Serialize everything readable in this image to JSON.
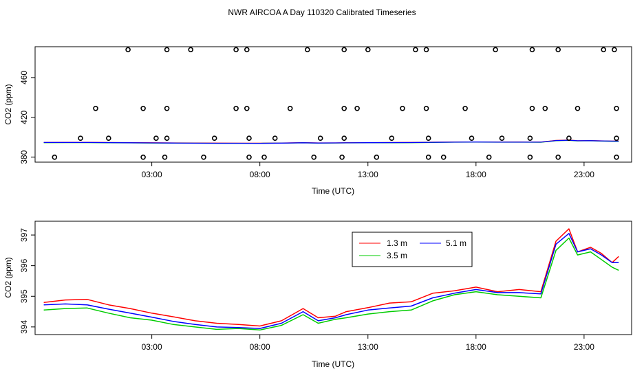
{
  "figure_title": "NWR AIRCOA A  Day 110320  Calibrated Timeseries",
  "chart_data": [
    {
      "type": "scatter",
      "title": "",
      "xlabel": "Time (UTC)",
      "ylabel": "CO2 (ppm)",
      "xlim": [
        -2.4,
        25.2
      ],
      "ylim": [
        375,
        491
      ],
      "x_ticks": [
        3,
        8,
        13,
        18,
        23
      ],
      "x_tick_labels": [
        "03:00",
        "08:00",
        "13:00",
        "18:00",
        "23:00"
      ],
      "y_ticks": [
        380,
        420,
        460
      ],
      "y_tick_labels": [
        "380",
        "420",
        "460"
      ],
      "points": {
        "x": [
          1.9,
          3.7,
          4.8,
          6.9,
          7.4,
          10.2,
          11.9,
          13.0,
          15.2,
          15.7,
          18.9,
          20.6,
          21.8,
          23.9,
          24.4,
          0.4,
          2.6,
          3.7,
          6.9,
          7.4,
          9.4,
          11.9,
          12.5,
          14.6,
          15.7,
          17.5,
          20.6,
          21.2,
          22.7,
          24.5,
          -0.3,
          1.0,
          3.2,
          3.7,
          5.9,
          7.5,
          8.7,
          10.8,
          11.9,
          14.1,
          15.8,
          17.8,
          19.2,
          20.5,
          22.3,
          24.5,
          -1.5,
          2.6,
          3.6,
          5.4,
          7.5,
          8.2,
          10.5,
          11.8,
          13.4,
          15.8,
          16.5,
          18.6,
          20.5,
          21.8,
          24.5
        ],
        "y": [
          488,
          488,
          488,
          488,
          488,
          488,
          488,
          488,
          488,
          488,
          488,
          488,
          488,
          488,
          488,
          429,
          429,
          429,
          429,
          429,
          429,
          429,
          429,
          429,
          429,
          429,
          429,
          429,
          429,
          429,
          399,
          399,
          399,
          399,
          399,
          399,
          399,
          399,
          399,
          399,
          399,
          399,
          399,
          399,
          399,
          399,
          380,
          380,
          380,
          380,
          380,
          380,
          380,
          380,
          380,
          380,
          380,
          380,
          380,
          380,
          380
        ]
      },
      "line_series": [
        {
          "name": "1.3 m",
          "color": "#ff0000"
        },
        {
          "name": "3.5 m",
          "color": "#00cc00"
        },
        {
          "name": "5.1 m",
          "color": "#0000ff"
        }
      ]
    },
    {
      "type": "line",
      "title": "",
      "xlabel": "Time (UTC)",
      "ylabel": "CO2 (ppm)",
      "xlim": [
        -2.4,
        25.2
      ],
      "ylim": [
        393.75,
        397.45
      ],
      "x_ticks": [
        3,
        8,
        13,
        18,
        23
      ],
      "x_tick_labels": [
        "03:00",
        "08:00",
        "13:00",
        "18:00",
        "23:00"
      ],
      "y_ticks": [
        394,
        395,
        396,
        397
      ],
      "y_tick_labels": [
        "394",
        "395",
        "396",
        "397"
      ],
      "legend": {
        "position": "top-right",
        "entries": [
          "1.3 m",
          "5.1 m",
          "3.5 m"
        ]
      },
      "series": [
        {
          "name": "1.3 m",
          "color": "#ff0000",
          "x": [
            -2.0,
            -1.0,
            0.0,
            1.0,
            2.0,
            3.0,
            4.0,
            5.0,
            6.0,
            7.0,
            8.0,
            9.0,
            10.0,
            10.7,
            11.5,
            12.0,
            13.0,
            14.0,
            15.0,
            16.0,
            17.0,
            18.0,
            19.0,
            20.0,
            21.0,
            21.7,
            22.3,
            22.7,
            23.3,
            23.8,
            24.3,
            24.6
          ],
          "y": [
            394.8,
            394.88,
            394.9,
            394.72,
            394.6,
            394.45,
            394.33,
            394.2,
            394.12,
            394.08,
            394.03,
            394.2,
            394.6,
            394.3,
            394.35,
            394.5,
            394.63,
            394.78,
            394.82,
            395.1,
            395.18,
            395.3,
            395.15,
            395.22,
            395.15,
            396.8,
            397.2,
            396.45,
            396.6,
            396.4,
            396.1,
            396.3
          ]
        },
        {
          "name": "3.5 m",
          "color": "#00cc00",
          "x": [
            -2.0,
            -1.0,
            0.0,
            1.0,
            2.0,
            3.0,
            4.0,
            5.0,
            6.0,
            7.0,
            8.0,
            9.0,
            10.0,
            10.7,
            11.5,
            12.0,
            13.0,
            14.0,
            15.0,
            16.0,
            17.0,
            18.0,
            19.0,
            20.0,
            21.0,
            21.7,
            22.3,
            22.7,
            23.3,
            23.8,
            24.3,
            24.6
          ],
          "y": [
            394.55,
            394.6,
            394.62,
            394.45,
            394.3,
            394.22,
            394.08,
            394.0,
            393.92,
            393.95,
            393.9,
            394.05,
            394.4,
            394.12,
            394.25,
            394.3,
            394.42,
            394.5,
            394.55,
            394.85,
            395.05,
            395.15,
            395.05,
            395.0,
            394.95,
            396.5,
            396.9,
            396.35,
            396.45,
            396.2,
            395.95,
            395.85
          ]
        },
        {
          "name": "5.1 m",
          "color": "#0000ff",
          "x": [
            -2.0,
            -1.0,
            0.0,
            1.0,
            2.0,
            3.0,
            4.0,
            5.0,
            6.0,
            7.0,
            8.0,
            9.0,
            10.0,
            10.7,
            11.5,
            12.0,
            13.0,
            14.0,
            15.0,
            16.0,
            17.0,
            18.0,
            19.0,
            20.0,
            21.0,
            21.7,
            22.3,
            22.7,
            23.3,
            23.8,
            24.3,
            24.6
          ],
          "y": [
            394.72,
            394.75,
            394.72,
            394.58,
            394.45,
            394.32,
            394.18,
            394.08,
            394.0,
            393.98,
            393.95,
            394.12,
            394.5,
            394.2,
            394.3,
            394.4,
            394.55,
            394.62,
            394.68,
            394.95,
            395.1,
            395.22,
            395.12,
            395.12,
            395.08,
            396.7,
            397.05,
            396.45,
            396.55,
            396.35,
            396.1,
            396.1
          ]
        }
      ]
    }
  ]
}
